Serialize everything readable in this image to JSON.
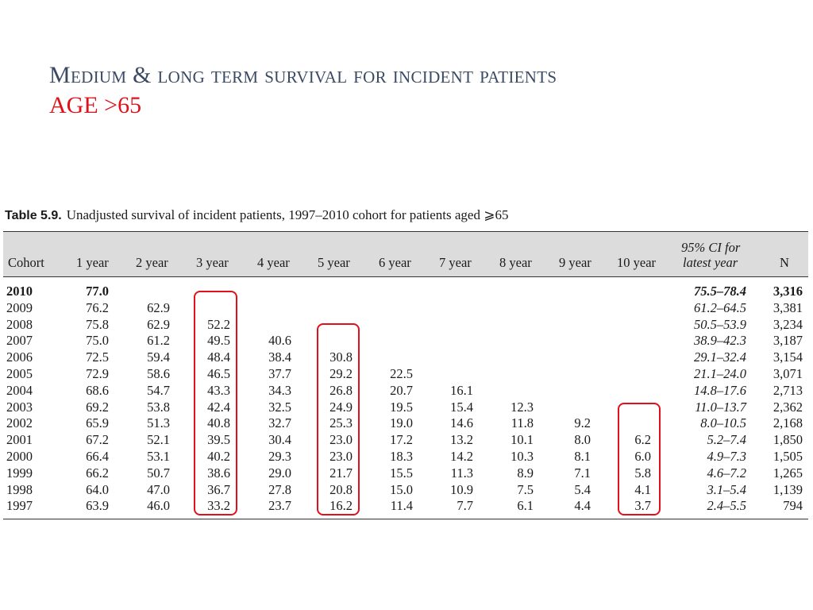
{
  "slide": {
    "title": "Medium & long term survival for incident patients",
    "subtitle": "AGE >65"
  },
  "table": {
    "label": "Table 5.9.",
    "caption": "Unadjusted survival of incident patients, 1997–2010 cohort for patients aged ⩾65",
    "headers": {
      "cohort": "Cohort",
      "y1": "1 year",
      "y2": "2 year",
      "y3": "3 year",
      "y4": "4 year",
      "y5": "5 year",
      "y6": "6 year",
      "y7": "7 year",
      "y8": "8 year",
      "y9": "9 year",
      "y10": "10 year",
      "ci_line1": "95% CI for",
      "ci_line2": "latest year",
      "n": "N"
    },
    "rows": [
      {
        "cohort": "2010",
        "y1": "77.0",
        "y2": "",
        "y3": "",
        "y4": "",
        "y5": "",
        "y6": "",
        "y7": "",
        "y8": "",
        "y9": "",
        "y10": "",
        "ci": "75.5–78.4",
        "n": "3,316"
      },
      {
        "cohort": "2009",
        "y1": "76.2",
        "y2": "62.9",
        "y3": "",
        "y4": "",
        "y5": "",
        "y6": "",
        "y7": "",
        "y8": "",
        "y9": "",
        "y10": "",
        "ci": "61.2–64.5",
        "n": "3,381"
      },
      {
        "cohort": "2008",
        "y1": "75.8",
        "y2": "62.9",
        "y3": "52.2",
        "y4": "",
        "y5": "",
        "y6": "",
        "y7": "",
        "y8": "",
        "y9": "",
        "y10": "",
        "ci": "50.5–53.9",
        "n": "3,234"
      },
      {
        "cohort": "2007",
        "y1": "75.0",
        "y2": "61.2",
        "y3": "49.5",
        "y4": "40.6",
        "y5": "",
        "y6": "",
        "y7": "",
        "y8": "",
        "y9": "",
        "y10": "",
        "ci": "38.9–42.3",
        "n": "3,187"
      },
      {
        "cohort": "2006",
        "y1": "72.5",
        "y2": "59.4",
        "y3": "48.4",
        "y4": "38.4",
        "y5": "30.8",
        "y6": "",
        "y7": "",
        "y8": "",
        "y9": "",
        "y10": "",
        "ci": "29.1–32.4",
        "n": "3,154"
      },
      {
        "cohort": "2005",
        "y1": "72.9",
        "y2": "58.6",
        "y3": "46.5",
        "y4": "37.7",
        "y5": "29.2",
        "y6": "22.5",
        "y7": "",
        "y8": "",
        "y9": "",
        "y10": "",
        "ci": "21.1–24.0",
        "n": "3,071"
      },
      {
        "cohort": "2004",
        "y1": "68.6",
        "y2": "54.7",
        "y3": "43.3",
        "y4": "34.3",
        "y5": "26.8",
        "y6": "20.7",
        "y7": "16.1",
        "y8": "",
        "y9": "",
        "y10": "",
        "ci": "14.8–17.6",
        "n": "2,713"
      },
      {
        "cohort": "2003",
        "y1": "69.2",
        "y2": "53.8",
        "y3": "42.4",
        "y4": "32.5",
        "y5": "24.9",
        "y6": "19.5",
        "y7": "15.4",
        "y8": "12.3",
        "y9": "",
        "y10": "",
        "ci": "11.0–13.7",
        "n": "2,362"
      },
      {
        "cohort": "2002",
        "y1": "65.9",
        "y2": "51.3",
        "y3": "40.8",
        "y4": "32.7",
        "y5": "25.3",
        "y6": "19.0",
        "y7": "14.6",
        "y8": "11.8",
        "y9": "9.2",
        "y10": "",
        "ci": "8.0–10.5",
        "n": "2,168"
      },
      {
        "cohort": "2001",
        "y1": "67.2",
        "y2": "52.1",
        "y3": "39.5",
        "y4": "30.4",
        "y5": "23.0",
        "y6": "17.2",
        "y7": "13.2",
        "y8": "10.1",
        "y9": "8.0",
        "y10": "6.2",
        "ci": "5.2–7.4",
        "n": "1,850"
      },
      {
        "cohort": "2000",
        "y1": "66.4",
        "y2": "53.1",
        "y3": "40.2",
        "y4": "29.3",
        "y5": "23.0",
        "y6": "18.3",
        "y7": "14.2",
        "y8": "10.3",
        "y9": "8.1",
        "y10": "6.0",
        "ci": "4.9–7.3",
        "n": "1,505"
      },
      {
        "cohort": "1999",
        "y1": "66.2",
        "y2": "50.7",
        "y3": "38.6",
        "y4": "29.0",
        "y5": "21.7",
        "y6": "15.5",
        "y7": "11.3",
        "y8": "8.9",
        "y9": "7.1",
        "y10": "5.8",
        "ci": "4.6–7.2",
        "n": "1,265"
      },
      {
        "cohort": "1998",
        "y1": "64.0",
        "y2": "47.0",
        "y3": "36.7",
        "y4": "27.8",
        "y5": "20.8",
        "y6": "15.0",
        "y7": "10.9",
        "y8": "7.5",
        "y9": "5.4",
        "y10": "4.1",
        "ci": "3.1–5.4",
        "n": "1,139"
      },
      {
        "cohort": "1997",
        "y1": "63.9",
        "y2": "46.0",
        "y3": "33.2",
        "y4": "23.7",
        "y5": "16.2",
        "y6": "11.4",
        "y7": "7.7",
        "y8": "6.1",
        "y9": "4.4",
        "y10": "3.7",
        "ci": "2.4–5.5",
        "n": "794"
      }
    ]
  },
  "highlights": {
    "color": "#e0111a",
    "columns": [
      "3 year",
      "5 year",
      "10 year"
    ]
  }
}
